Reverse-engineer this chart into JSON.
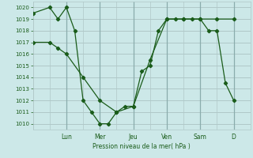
{
  "title": "Pression niveau de la mer( hPa )",
  "bg_color": "#cce8e8",
  "grid_color": "#b0c8c8",
  "line_color": "#1a5c1a",
  "ylim": [
    1009.5,
    1020.5
  ],
  "yticks": [
    1010,
    1011,
    1012,
    1013,
    1014,
    1015,
    1016,
    1017,
    1018,
    1019,
    1020
  ],
  "day_labels": [
    "Lun",
    "Mer",
    "Jeu",
    "Ven",
    "Sam",
    "D"
  ],
  "day_positions": [
    2.0,
    4.0,
    6.0,
    8.0,
    10.0,
    12.0
  ],
  "xlim": [
    0,
    13
  ],
  "series1_x": [
    0,
    1,
    1.5,
    2,
    2.5,
    3,
    3.5,
    4,
    4.5,
    5,
    5.5,
    6,
    6.5,
    7,
    7.5,
    8,
    8.5,
    9,
    9.5,
    10,
    10.5,
    11,
    11.5,
    12
  ],
  "series1_y": [
    1019.5,
    1020,
    1019,
    1020,
    1018,
    1012,
    1011,
    1010,
    1010,
    1011,
    1011.5,
    1011.5,
    1014.5,
    1015,
    1018,
    1019,
    1019,
    1019,
    1019,
    1019,
    1018,
    1018,
    1013.5,
    1012
  ],
  "series2_x": [
    0,
    1,
    1.5,
    2,
    3,
    4,
    5,
    6,
    7,
    8,
    9,
    10,
    11,
    12
  ],
  "series2_y": [
    1017,
    1017,
    1016.5,
    1016,
    1014,
    1012,
    1011,
    1011.5,
    1015.5,
    1019,
    1019,
    1019,
    1019,
    1019
  ]
}
